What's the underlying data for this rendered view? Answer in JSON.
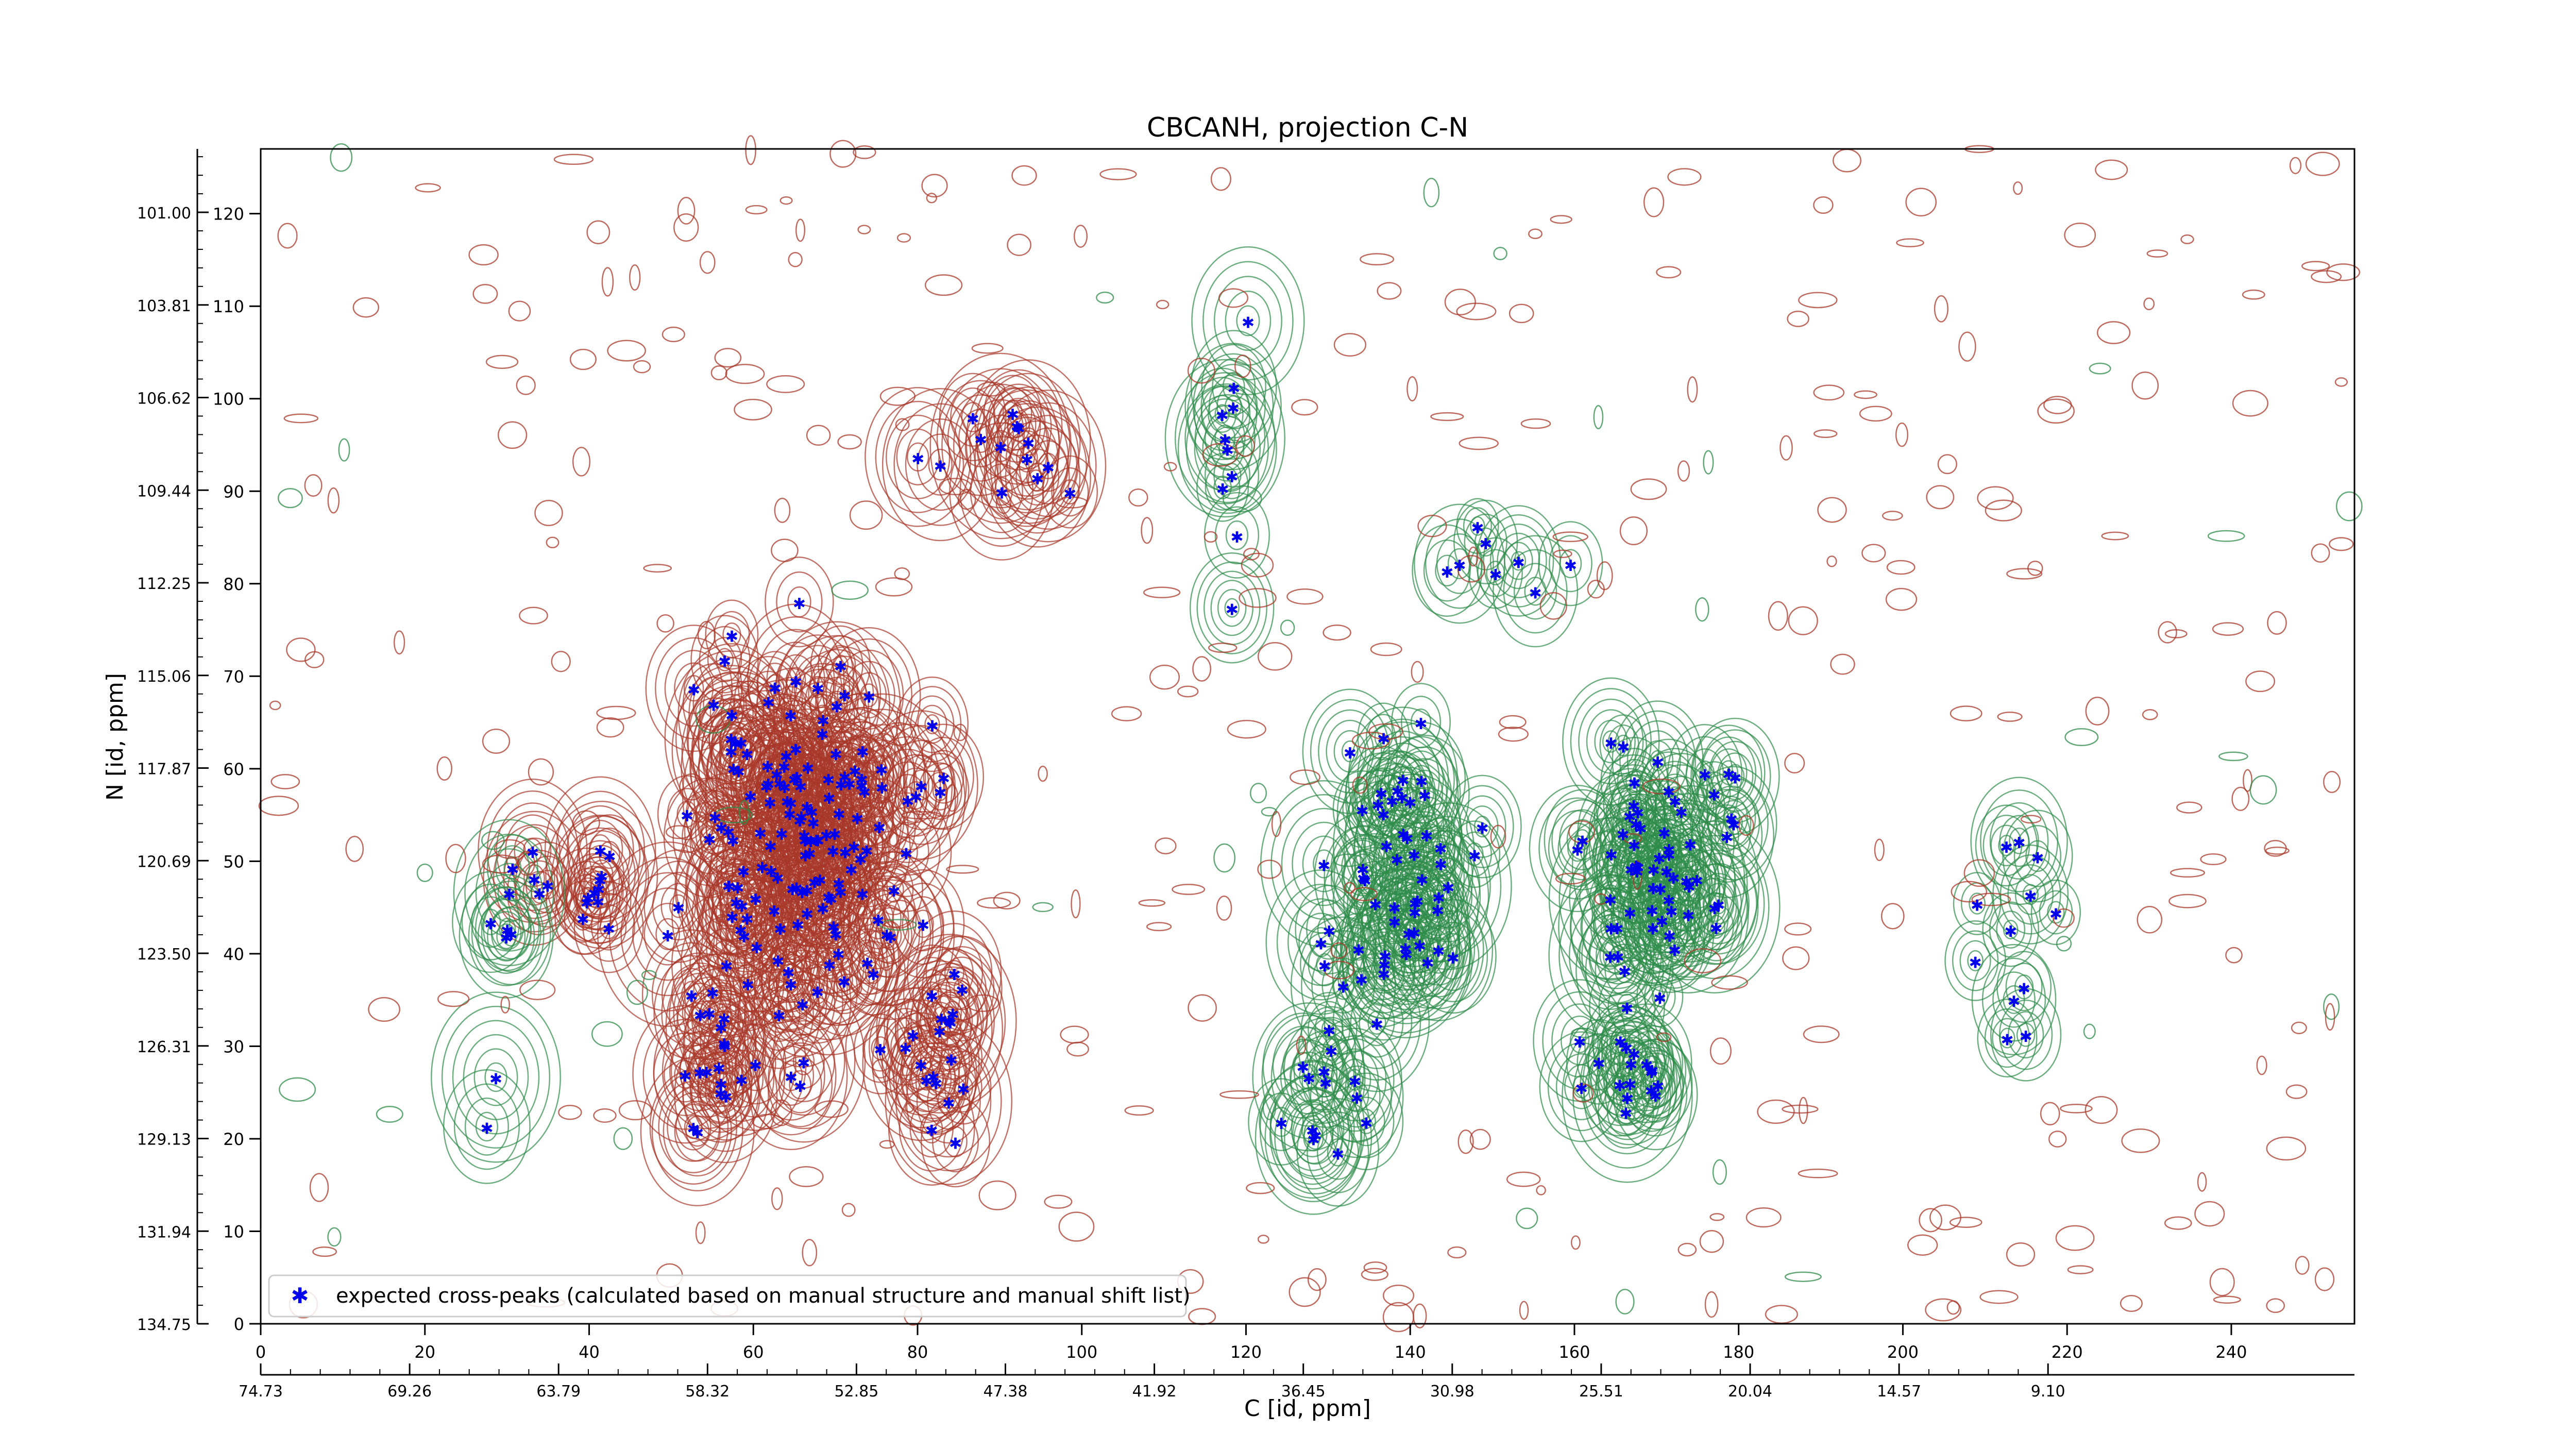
{
  "chart_data": {
    "type": "scatter",
    "title": "CBCANH, projection C-N",
    "xlabel": "C [id, ppm]",
    "ylabel": "N [id, ppm]",
    "xlim": [
      0,
      255
    ],
    "ylim": [
      0,
      127
    ],
    "bottom_ticks": [
      0,
      20,
      40,
      60,
      80,
      100,
      120,
      140,
      160,
      180,
      200,
      220,
      240
    ],
    "left_ticks": [
      0,
      10,
      20,
      30,
      40,
      50,
      60,
      70,
      80,
      90,
      100,
      110,
      120
    ],
    "c_ppm_ticks": [
      "74.73",
      "69.26",
      "63.79",
      "58.32",
      "52.85",
      "47.38",
      "41.92",
      "36.45",
      "30.98",
      "25.51",
      "20.04",
      "14.57",
      "9.10"
    ],
    "n_ppm_ticks": [
      "101.00",
      "103.81",
      "106.62",
      "109.44",
      "112.25",
      "115.06",
      "117.87",
      "120.69",
      "123.50",
      "126.31",
      "129.13",
      "131.94",
      "134.75"
    ],
    "legend": {
      "label": "expected cross-peaks (calculated based on manual structure and manual shift list)",
      "location": "lower-left"
    },
    "colors": {
      "peaks": "#0000ee",
      "contour_negative": "#a8382a",
      "contour_positive": "#2e8b4a"
    },
    "grid": false,
    "clusters": [
      {
        "cx": 68,
        "cy": 52,
        "rx": 22,
        "ry": 30,
        "n": 150,
        "color": "#a8382a"
      },
      {
        "cx": 56,
        "cy": 28,
        "rx": 8,
        "ry": 12,
        "n": 18,
        "color": "#a8382a"
      },
      {
        "cx": 82,
        "cy": 30,
        "rx": 8,
        "ry": 16,
        "n": 20,
        "color": "#a8382a"
      },
      {
        "cx": 138,
        "cy": 48,
        "rx": 14,
        "ry": 20,
        "n": 55,
        "color": "#2e8b4a"
      },
      {
        "cx": 130,
        "cy": 25,
        "rx": 8,
        "ry": 10,
        "n": 15,
        "color": "#2e8b4a"
      },
      {
        "cx": 170,
        "cy": 50,
        "rx": 14,
        "ry": 18,
        "n": 60,
        "color": "#2e8b4a"
      },
      {
        "cx": 166,
        "cy": 28,
        "rx": 8,
        "ry": 12,
        "n": 18,
        "color": "#2e8b4a"
      },
      {
        "cx": 118,
        "cy": 92,
        "rx": 4,
        "ry": 20,
        "n": 10,
        "color": "#2e8b4a"
      },
      {
        "cx": 215,
        "cy": 42,
        "rx": 8,
        "ry": 20,
        "n": 12,
        "color": "#2e8b4a"
      },
      {
        "cx": 38,
        "cy": 48,
        "rx": 8,
        "ry": 10,
        "n": 15,
        "color": "#a8382a"
      },
      {
        "cx": 30,
        "cy": 40,
        "rx": 4,
        "ry": 25,
        "n": 8,
        "color": "#2e8b4a"
      },
      {
        "cx": 90,
        "cy": 95,
        "rx": 15,
        "ry": 12,
        "n": 14,
        "color": "#a8382a"
      },
      {
        "cx": 150,
        "cy": 82,
        "rx": 18,
        "ry": 6,
        "n": 8,
        "color": "#2e8b4a"
      }
    ]
  }
}
